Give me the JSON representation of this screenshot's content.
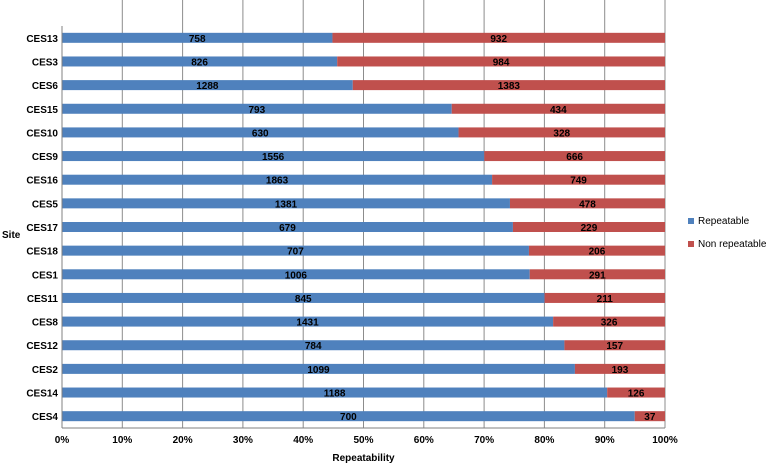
{
  "chart_data": {
    "type": "bar",
    "orientation": "horizontal",
    "stacking": "percent",
    "title": "",
    "xlabel": "Repeatability",
    "ylabel": "Site",
    "xlim": [
      0,
      100
    ],
    "x_ticks": [
      "0%",
      "10%",
      "20%",
      "30%",
      "40%",
      "50%",
      "60%",
      "70%",
      "80%",
      "90%",
      "100%"
    ],
    "grid": true,
    "legend_position": "right",
    "categories": [
      "CES13",
      "CES3",
      "CES6",
      "CES15",
      "CES10",
      "CES9",
      "CES16",
      "CES5",
      "CES17",
      "CES18",
      "CES1",
      "CES11",
      "CES8",
      "CES12",
      "CES2",
      "CES14",
      "CES4"
    ],
    "series": [
      {
        "name": "Repeatable",
        "color": "#4F81BD",
        "values": [
          758,
          826,
          1288,
          793,
          630,
          1556,
          1863,
          1381,
          679,
          707,
          1006,
          845,
          1431,
          784,
          1099,
          1188,
          700
        ]
      },
      {
        "name": "Non repeatable",
        "color": "#C0504D",
        "values": [
          932,
          984,
          1383,
          434,
          328,
          666,
          749,
          478,
          229,
          206,
          291,
          211,
          326,
          157,
          193,
          126,
          37
        ]
      }
    ]
  }
}
